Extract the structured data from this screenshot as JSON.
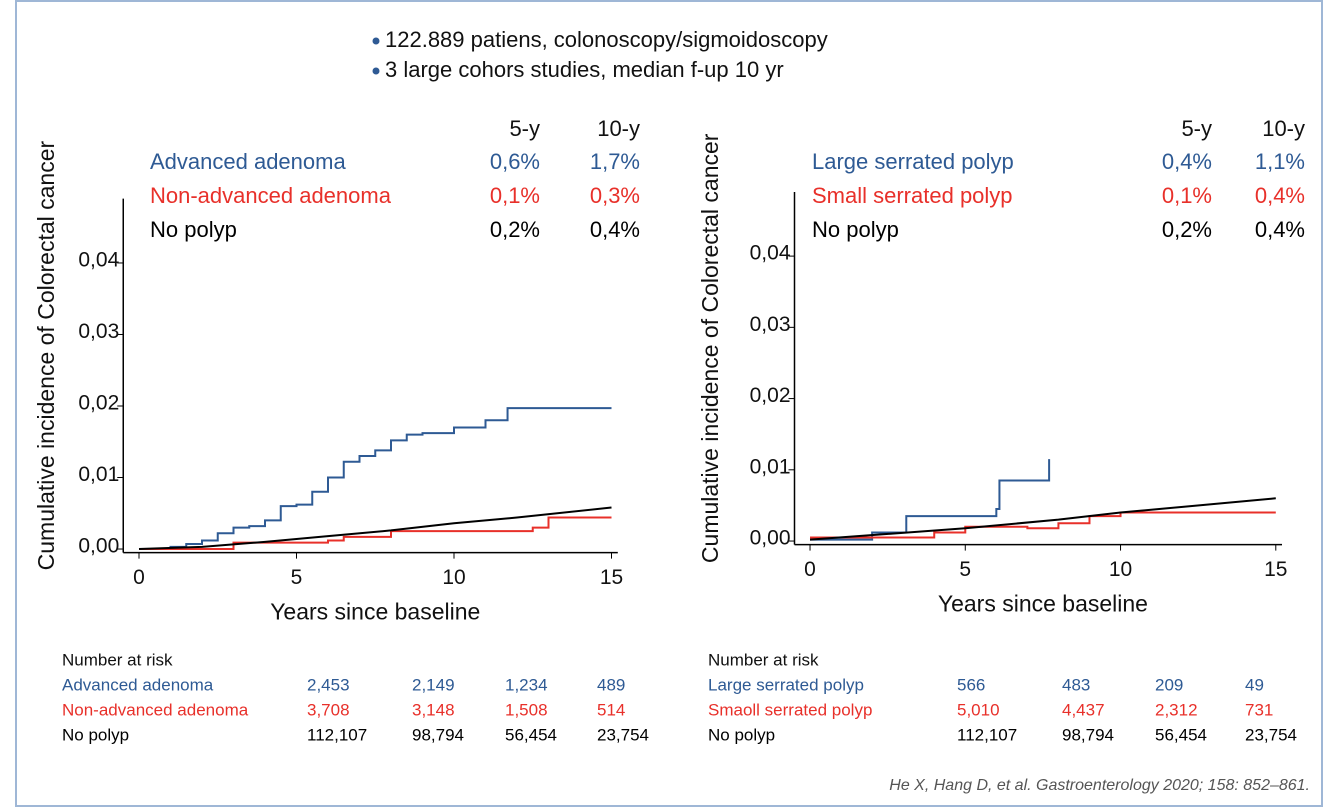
{
  "header": {
    "bullets": [
      "122.889 patiens, colonoscopy/sigmoidoscopy",
      "3 large cohors studies, median f-up 10 yr"
    ]
  },
  "chart_data": [
    {
      "type": "line",
      "ylabel": "Cumulative incidence of Colorectal cancer",
      "xlabel": "Years since baseline",
      "xlim": [
        -0.5,
        15.2
      ],
      "xticks": [
        0,
        5,
        10,
        15
      ],
      "ylim": [
        -0.0005,
        0.049
      ],
      "yticks": [
        {
          "value": 0,
          "label": "0,00"
        },
        {
          "value": 0.01,
          "label": "0,01"
        },
        {
          "value": 0.02,
          "label": "0,02"
        },
        {
          "value": 0.03,
          "label": "0,03"
        },
        {
          "value": 0.04,
          "label": "0,04"
        }
      ],
      "summary_headers": [
        "5-y",
        "10-y"
      ],
      "series": [
        {
          "name": "Advanced adenoma",
          "color": "#2e5a94",
          "step": true,
          "summary": [
            "0,6%",
            "1,7%"
          ],
          "x": [
            0,
            1,
            1.5,
            2,
            2.5,
            3,
            3.5,
            4,
            4.5,
            5,
            5.5,
            6,
            6.5,
            7,
            7.5,
            8,
            8.5,
            9,
            10,
            11,
            11.7,
            15
          ],
          "values": [
            0,
            0.0003,
            0.0007,
            0.0012,
            0.0022,
            0.003,
            0.0032,
            0.004,
            0.006,
            0.0062,
            0.008,
            0.01,
            0.0122,
            0.013,
            0.0138,
            0.0152,
            0.016,
            0.0162,
            0.017,
            0.018,
            0.0197,
            0.0197
          ]
        },
        {
          "name": "Non-advanced adenoma",
          "color": "#e8302a",
          "step": true,
          "summary": [
            "0,1%",
            "0,3%"
          ],
          "x": [
            0,
            3,
            6,
            6.5,
            8,
            12.5,
            13,
            15
          ],
          "values": [
            0,
            0.0009,
            0.0012,
            0.0017,
            0.0025,
            0.003,
            0.0044,
            0.0044
          ]
        },
        {
          "name": "No polyp",
          "color": "#000000",
          "step": false,
          "summary": [
            "0,2%",
            "0,4%"
          ],
          "x": [
            0,
            2,
            4,
            6,
            8,
            10,
            12,
            15
          ],
          "values": [
            0,
            0.0003,
            0.001,
            0.0018,
            0.0026,
            0.0036,
            0.0044,
            0.0058
          ]
        }
      ],
      "risk_table": {
        "title": "Number at risk",
        "rows": [
          {
            "name": "Advanced adenoma",
            "values": [
              "2,453",
              "2,149",
              "1,234",
              "489"
            ]
          },
          {
            "name": "Non-advanced adenoma",
            "values": [
              "3,708",
              "3,148",
              "1,508",
              "514"
            ]
          },
          {
            "name": "No polyp",
            "values": [
              "112,107",
              "98,794",
              "56,454",
              "23,754"
            ]
          }
        ]
      }
    },
    {
      "type": "line",
      "ylabel": "Cumulative incidence of Colorectal cancer",
      "xlabel": "Years since baseline",
      "xlim": [
        -0.5,
        15.2
      ],
      "xticks": [
        0,
        5,
        10,
        15
      ],
      "ylim": [
        -0.0005,
        0.049
      ],
      "yticks": [
        {
          "value": 0,
          "label": "0,00"
        },
        {
          "value": 0.01,
          "label": "0,01"
        },
        {
          "value": 0.02,
          "label": "0,02"
        },
        {
          "value": 0.03,
          "label": "0,03"
        },
        {
          "value": 0.04,
          "label": "0,04"
        }
      ],
      "summary_headers": [
        "5-y",
        "10-y"
      ],
      "series": [
        {
          "name": "Large serrated polyp",
          "color": "#2e5a94",
          "step": true,
          "summary": [
            "0,4%",
            "1,1%"
          ],
          "x": [
            0,
            2,
            3.1,
            6,
            6.1,
            7.7,
            7.7
          ],
          "values": [
            0.0002,
            0.0012,
            0.0035,
            0.0045,
            0.0085,
            0.0085,
            0.0115
          ]
        },
        {
          "name": "Small serrated polyp",
          "color": "#e8302a",
          "step": true,
          "summary": [
            "0,1%",
            "0,4%"
          ],
          "x": [
            0,
            2,
            4,
            5,
            7,
            8,
            9,
            10,
            15
          ],
          "values": [
            0.0005,
            0.0005,
            0.0012,
            0.002,
            0.0018,
            0.0025,
            0.0035,
            0.004,
            0.004
          ]
        },
        {
          "name": "No polyp",
          "color": "#000000",
          "step": false,
          "summary": [
            "0,2%",
            "0,4%"
          ],
          "x": [
            0,
            5,
            8,
            10,
            12,
            15
          ],
          "values": [
            0.0002,
            0.0018,
            0.003,
            0.004,
            0.0048,
            0.006
          ]
        }
      ],
      "risk_table": {
        "title": "Number at risk",
        "rows": [
          {
            "name": "Large serrated polyp",
            "values": [
              "566",
              "483",
              "209",
              "49"
            ]
          },
          {
            "name": "Smaoll serrated polyp",
            "values": [
              "5,010",
              "4,437",
              "2,312",
              "731"
            ]
          },
          {
            "name": "No polyp",
            "values": [
              "112,107",
              "98,794",
              "56,454",
              "23,754"
            ]
          }
        ]
      }
    }
  ],
  "citation": "He X, Hang D, et al. Gastroenterology 2020; 158: 852–861."
}
